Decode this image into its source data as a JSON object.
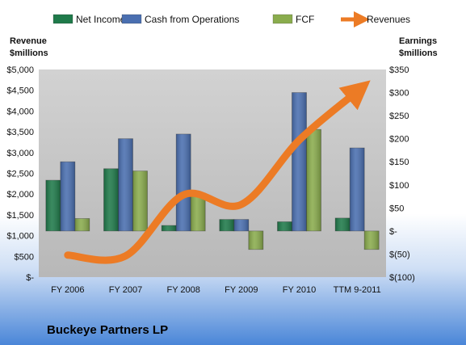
{
  "chart_data": {
    "type": "bar",
    "title": "Buckeye Partners LP",
    "categories": [
      "FY 2006",
      "FY 2007",
      "FY 2008",
      "FY 2009",
      "FY 2010",
      "TTM 9-2011"
    ],
    "left_axis": {
      "label_line1": "Revenue",
      "label_line2": "$millions",
      "ylim": [
        0,
        5000
      ],
      "ticks": [
        0,
        500,
        1000,
        1500,
        2000,
        2500,
        3000,
        3500,
        4000,
        4500,
        5000
      ],
      "tick_labels": [
        "$-",
        "$500",
        "$1,000",
        "$1,500",
        "$2,000",
        "$2,500",
        "$3,000",
        "$3,500",
        "$4,000",
        "$4,500",
        "$5,000"
      ]
    },
    "right_axis": {
      "label_line1": "Earnings",
      "label_line2": "$millions",
      "ylim": [
        -100,
        350
      ],
      "ticks": [
        -100,
        -50,
        0,
        50,
        100,
        150,
        200,
        250,
        300,
        350
      ],
      "tick_labels": [
        "$(100)",
        "$(50)",
        "$-",
        "$50",
        "$100",
        "$150",
        "$200",
        "$250",
        "$300",
        "$350"
      ]
    },
    "series": [
      {
        "name": "Net Income",
        "axis": "right",
        "kind": "bar",
        "color": "#1f7a4a",
        "values": [
          110,
          135,
          12,
          25,
          20,
          28
        ]
      },
      {
        "name": "Cash from Operations",
        "axis": "right",
        "kind": "bar",
        "color": "#4a6fb0",
        "values": [
          150,
          200,
          210,
          25,
          300,
          180
        ]
      },
      {
        "name": "FCF",
        "axis": "right",
        "kind": "bar",
        "color": "#8aac4d",
        "values": [
          27,
          130,
          82,
          -40,
          220,
          -40
        ]
      },
      {
        "name": "Revenues",
        "axis": "left",
        "kind": "line",
        "color": "#ec7b25",
        "values": [
          530,
          510,
          1980,
          1750,
          3300,
          4470
        ]
      }
    ],
    "legend": "top",
    "grid": false
  },
  "colors": {
    "plot_background_top": "#c8c8c8",
    "plot_background_bottom": "#bdbdbd",
    "page_background_top": "#ffffff",
    "page_background_bottom": "#4a86d8"
  }
}
